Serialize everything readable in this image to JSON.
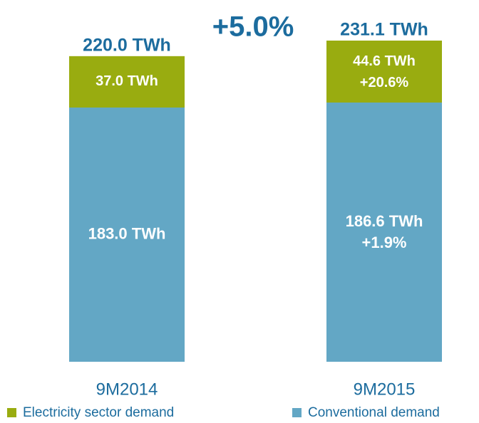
{
  "chart_data": {
    "type": "stacked_bar",
    "categories": [
      "9M2014",
      "9M2015"
    ],
    "series": [
      {
        "name": "Conventional demand",
        "color": "#63a7c5",
        "values": [
          183.0,
          186.6
        ],
        "value_labels": [
          "183.0 TWh",
          "186.6 TWh"
        ],
        "change_labels": [
          null,
          "+1.9%"
        ]
      },
      {
        "name": "Electricity sector demand",
        "color": "#99ac10",
        "values": [
          37.0,
          44.6
        ],
        "value_labels": [
          "37.0 TWh",
          "44.6 TWh"
        ],
        "change_labels": [
          null,
          "+20.6%"
        ]
      }
    ],
    "totals": [
      220.0,
      231.1
    ],
    "total_labels": [
      "220.0 TWh",
      "231.1 TWh"
    ],
    "total_change_label": "+5.0%"
  }
}
